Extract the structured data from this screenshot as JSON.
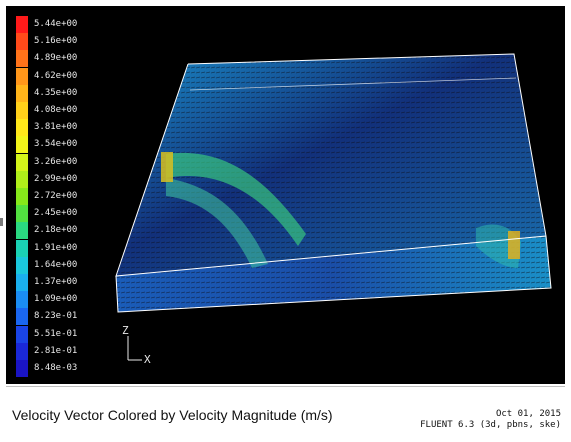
{
  "legend": {
    "title": "",
    "entries": [
      {
        "label": "5.44e+00",
        "color": "#ff1a1a"
      },
      {
        "label": "5.16e+00",
        "color": "#ff4a1a"
      },
      {
        "label": "4.89e+00",
        "color": "#ff731a"
      },
      {
        "label": "4.62e+00",
        "color": "#ff961a"
      },
      {
        "label": "4.35e+00",
        "color": "#ffb41a"
      },
      {
        "label": "4.08e+00",
        "color": "#ffd01a"
      },
      {
        "label": "3.81e+00",
        "color": "#ffe81a"
      },
      {
        "label": "3.54e+00",
        "color": "#f2f51a"
      },
      {
        "label": "3.26e+00",
        "color": "#d4f51a"
      },
      {
        "label": "2.99e+00",
        "color": "#b0ef1a"
      },
      {
        "label": "2.72e+00",
        "color": "#86e81a"
      },
      {
        "label": "2.45e+00",
        "color": "#52e040"
      },
      {
        "label": "2.18e+00",
        "color": "#2ad880"
      },
      {
        "label": "1.91e+00",
        "color": "#1ad2b4"
      },
      {
        "label": "1.64e+00",
        "color": "#1ac8dc"
      },
      {
        "label": "1.37e+00",
        "color": "#1ab0ee"
      },
      {
        "label": "1.09e+00",
        "color": "#1a8cf2"
      },
      {
        "label": "8.23e-01",
        "color": "#1a66f0"
      },
      {
        "label": "5.51e-01",
        "color": "#1a44e6"
      },
      {
        "label": "2.81e-01",
        "color": "#1a28d8"
      },
      {
        "label": "8.48e-03",
        "color": "#1a14c4"
      }
    ]
  },
  "axes": {
    "z_label": "Z",
    "x_label": "X"
  },
  "caption": {
    "title": "Velocity Vector Colored by Velocity Magnitude (m/s)",
    "date": "Oct 01, 2015",
    "version": "FLUENT 6.3 (3d, pbns, ske)"
  },
  "colors": {
    "background": "#000000",
    "edge": "#ffffff",
    "low_velocity": "#1a28d8",
    "high_velocity": "#ff1a1a"
  }
}
